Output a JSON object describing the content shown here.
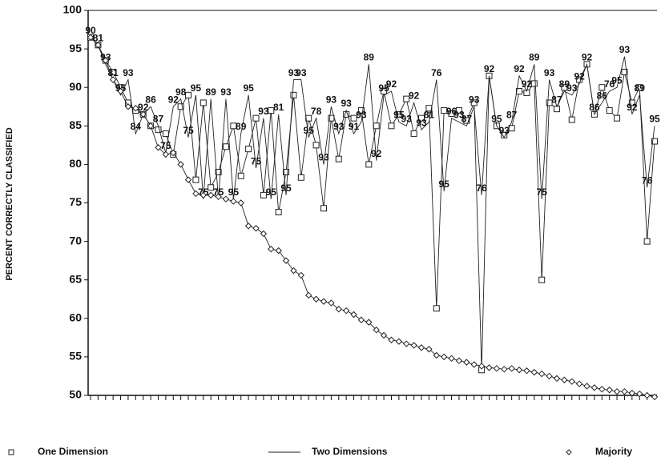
{
  "chart_data": {
    "type": "line",
    "y_label": "PERCENT CORRECTLY CLASSIFIED",
    "ylim": [
      50,
      100
    ],
    "yticks": [
      50,
      55,
      60,
      65,
      70,
      75,
      80,
      85,
      90,
      95,
      100
    ],
    "categories": [
      null,
      null,
      null,
      null,
      null,
      null,
      null,
      null,
      null,
      null,
      null,
      null,
      null,
      null,
      null,
      null,
      null,
      null,
      null,
      null,
      null,
      null,
      null,
      null,
      null,
      null,
      null,
      null,
      null,
      null,
      null,
      null,
      null,
      null,
      null,
      null,
      null,
      null,
      null,
      null,
      null,
      null,
      null,
      null,
      null,
      null,
      null,
      null,
      null,
      null,
      null,
      null,
      null,
      null,
      null,
      null,
      null,
      null,
      null,
      null,
      null,
      null,
      null,
      null,
      null,
      null,
      null,
      null,
      null,
      null,
      null,
      null,
      null,
      null,
      null,
      null
    ],
    "series": [
      {
        "name": "One Dimension",
        "color": "#222222",
        "marker": "square",
        "values": [
          96.5,
          95.5,
          93.5,
          92,
          90,
          88,
          87,
          86.5,
          85,
          84.5,
          84,
          81.3,
          87.5,
          89,
          78,
          88,
          77,
          79,
          82.3,
          85,
          78.5,
          82,
          86,
          76,
          87,
          73.8,
          79,
          89,
          78.3,
          86,
          82.5,
          74.3,
          86,
          80.7,
          86.5,
          86,
          87,
          80,
          85,
          89.5,
          85,
          86.5,
          88.5,
          84,
          86,
          87.3,
          61.3,
          87,
          86.6,
          87,
          85.7,
          88,
          53.3,
          91.5,
          85,
          83.8,
          84.7,
          89.5,
          89.3,
          90.5,
          65,
          88,
          87.2,
          90,
          85.8,
          91,
          93,
          86.5,
          90,
          87,
          86,
          92,
          88,
          90,
          70,
          83
        ]
      },
      {
        "name": "Two Dimensions",
        "color": "#222222",
        "marker": "none",
        "values": [
          96.5,
          95.5,
          93,
          91,
          89,
          91,
          84,
          86.5,
          87.5,
          85,
          81.5,
          87.5,
          88.5,
          83.5,
          89,
          75.5,
          88.5,
          75.5,
          88.5,
          75.5,
          84,
          89,
          79.5,
          86,
          75.5,
          86.5,
          76,
          91,
          91,
          83.5,
          86,
          80,
          87.5,
          84,
          87,
          84,
          85.5,
          93,
          80.5,
          89,
          89.5,
          85.5,
          85,
          88,
          84.5,
          85.5,
          91,
          76.5,
          86,
          85.5,
          85,
          87.5,
          76,
          91.5,
          85,
          83.5,
          85.5,
          91.5,
          89.5,
          93,
          75.5,
          91,
          87.5,
          89.5,
          89,
          90.5,
          93,
          86.5,
          88,
          89.5,
          90,
          94,
          86.5,
          89,
          77,
          85
        ],
        "point_labels": [
          "90",
          "81",
          "93",
          "81",
          "95",
          "93",
          "84",
          "92",
          "86",
          "87",
          "75",
          "92",
          "98",
          "75",
          "95",
          "75",
          "89",
          "75",
          "93",
          "95",
          "89",
          "95",
          "75",
          "93",
          "95",
          "81",
          "95",
          "93",
          "93",
          "95",
          "78",
          "93",
          "93",
          "93",
          "93",
          "91",
          "93",
          "89",
          "92",
          "95",
          "92",
          "95",
          "93",
          "92",
          "93",
          "81",
          "76",
          "95",
          "96",
          "93",
          "87",
          "93",
          "76",
          "92",
          "95",
          "93",
          "87",
          "92",
          "92",
          "89",
          "75",
          "93",
          "87",
          "89",
          "93",
          "92",
          "92",
          "86",
          "86",
          "76",
          "95",
          "93",
          "92",
          "89",
          "76",
          "95"
        ]
      },
      {
        "name": "Majority",
        "color": "#222222",
        "marker": "diamond",
        "values": [
          96.5,
          95.5,
          93.5,
          91,
          89.5,
          87.5,
          87.3,
          86.5,
          85,
          82.2,
          81.3,
          81.5,
          80,
          78,
          76.2,
          76,
          76,
          75.8,
          75.5,
          75.2,
          75,
          72,
          71.7,
          71,
          69,
          68.8,
          67.5,
          66.2,
          65.6,
          63,
          62.5,
          62.2,
          62,
          61.2,
          61,
          60.5,
          59.8,
          59.5,
          58.5,
          57.8,
          57.2,
          57,
          56.7,
          56.5,
          56.2,
          56,
          55.2,
          55,
          54.8,
          54.5,
          54.3,
          54,
          53.8,
          53.6,
          53.5,
          53.4,
          53.5,
          53.3,
          53.2,
          53,
          52.8,
          52.5,
          52.2,
          52,
          51.8,
          51.5,
          51.2,
          51,
          50.8,
          50.7,
          50.5,
          50.5,
          50.3,
          50.2,
          50,
          49.8
        ]
      }
    ]
  }
}
